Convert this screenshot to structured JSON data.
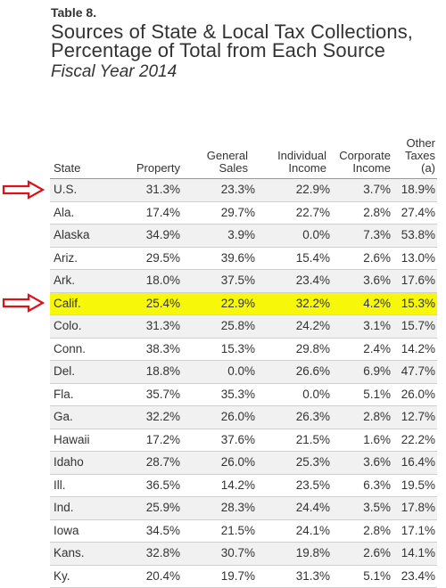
{
  "table_label": "Table 8.",
  "title": "Sources of State & Local Tax Collections, Percentage of Total from Each Source",
  "subtitle": "Fiscal Year 2014",
  "columns": [
    "State",
    "Property",
    "General Sales",
    "Individual Income",
    "Corporate Income",
    "Other Taxes (a)"
  ],
  "rows": [
    {
      "state": "U.S.",
      "property": "31.3%",
      "general_sales": "23.3%",
      "individual_income": "22.9%",
      "corporate_income": "3.7%",
      "other_taxes": "18.9%",
      "marked": true,
      "highlighted": false
    },
    {
      "state": "Ala.",
      "property": "17.4%",
      "general_sales": "29.7%",
      "individual_income": "22.7%",
      "corporate_income": "2.8%",
      "other_taxes": "27.4%",
      "marked": false,
      "highlighted": false
    },
    {
      "state": "Alaska",
      "property": "34.9%",
      "general_sales": "3.9%",
      "individual_income": "0.0%",
      "corporate_income": "7.3%",
      "other_taxes": "53.8%",
      "marked": false,
      "highlighted": false
    },
    {
      "state": "Ariz.",
      "property": "29.5%",
      "general_sales": "39.6%",
      "individual_income": "15.4%",
      "corporate_income": "2.6%",
      "other_taxes": "13.0%",
      "marked": false,
      "highlighted": false
    },
    {
      "state": "Ark.",
      "property": "18.0%",
      "general_sales": "37.5%",
      "individual_income": "23.4%",
      "corporate_income": "3.6%",
      "other_taxes": "17.6%",
      "marked": false,
      "highlighted": false
    },
    {
      "state": "Calif.",
      "property": "25.4%",
      "general_sales": "22.9%",
      "individual_income": "32.2%",
      "corporate_income": "4.2%",
      "other_taxes": "15.3%",
      "marked": true,
      "highlighted": true
    },
    {
      "state": "Colo.",
      "property": "31.3%",
      "general_sales": "25.8%",
      "individual_income": "24.2%",
      "corporate_income": "3.1%",
      "other_taxes": "15.7%",
      "marked": false,
      "highlighted": false
    },
    {
      "state": "Conn.",
      "property": "38.3%",
      "general_sales": "15.3%",
      "individual_income": "29.8%",
      "corporate_income": "2.4%",
      "other_taxes": "14.2%",
      "marked": false,
      "highlighted": false
    },
    {
      "state": "Del.",
      "property": "18.8%",
      "general_sales": "0.0%",
      "individual_income": "26.6%",
      "corporate_income": "6.9%",
      "other_taxes": "47.7%",
      "marked": false,
      "highlighted": false
    },
    {
      "state": "Fla.",
      "property": "35.7%",
      "general_sales": "35.3%",
      "individual_income": "0.0%",
      "corporate_income": "5.1%",
      "other_taxes": "26.0%",
      "marked": false,
      "highlighted": false
    },
    {
      "state": "Ga.",
      "property": "32.2%",
      "general_sales": "26.0%",
      "individual_income": "26.3%",
      "corporate_income": "2.8%",
      "other_taxes": "12.7%",
      "marked": false,
      "highlighted": false
    },
    {
      "state": "Hawaii",
      "property": "17.2%",
      "general_sales": "37.6%",
      "individual_income": "21.5%",
      "corporate_income": "1.6%",
      "other_taxes": "22.2%",
      "marked": false,
      "highlighted": false
    },
    {
      "state": "Idaho",
      "property": "28.7%",
      "general_sales": "26.0%",
      "individual_income": "25.3%",
      "corporate_income": "3.6%",
      "other_taxes": "16.4%",
      "marked": false,
      "highlighted": false
    },
    {
      "state": "Ill.",
      "property": "36.5%",
      "general_sales": "14.2%",
      "individual_income": "23.5%",
      "corporate_income": "6.3%",
      "other_taxes": "19.5%",
      "marked": false,
      "highlighted": false
    },
    {
      "state": "Ind.",
      "property": "25.9%",
      "general_sales": "28.3%",
      "individual_income": "24.4%",
      "corporate_income": "3.5%",
      "other_taxes": "17.8%",
      "marked": false,
      "highlighted": false
    },
    {
      "state": "Iowa",
      "property": "34.5%",
      "general_sales": "21.5%",
      "individual_income": "24.1%",
      "corporate_income": "2.8%",
      "other_taxes": "17.1%",
      "marked": false,
      "highlighted": false
    },
    {
      "state": "Kans.",
      "property": "32.8%",
      "general_sales": "30.7%",
      "individual_income": "19.8%",
      "corporate_income": "2.6%",
      "other_taxes": "14.1%",
      "marked": false,
      "highlighted": false
    },
    {
      "state": "Ky.",
      "property": "20.4%",
      "general_sales": "19.7%",
      "individual_income": "31.3%",
      "corporate_income": "5.1%",
      "other_taxes": "23.4%",
      "marked": false,
      "highlighted": false
    }
  ],
  "colors": {
    "highlight": "#f7f70a",
    "arrow": "#d9121b",
    "row_shade": "#f1f1f1",
    "text": "#333333"
  }
}
